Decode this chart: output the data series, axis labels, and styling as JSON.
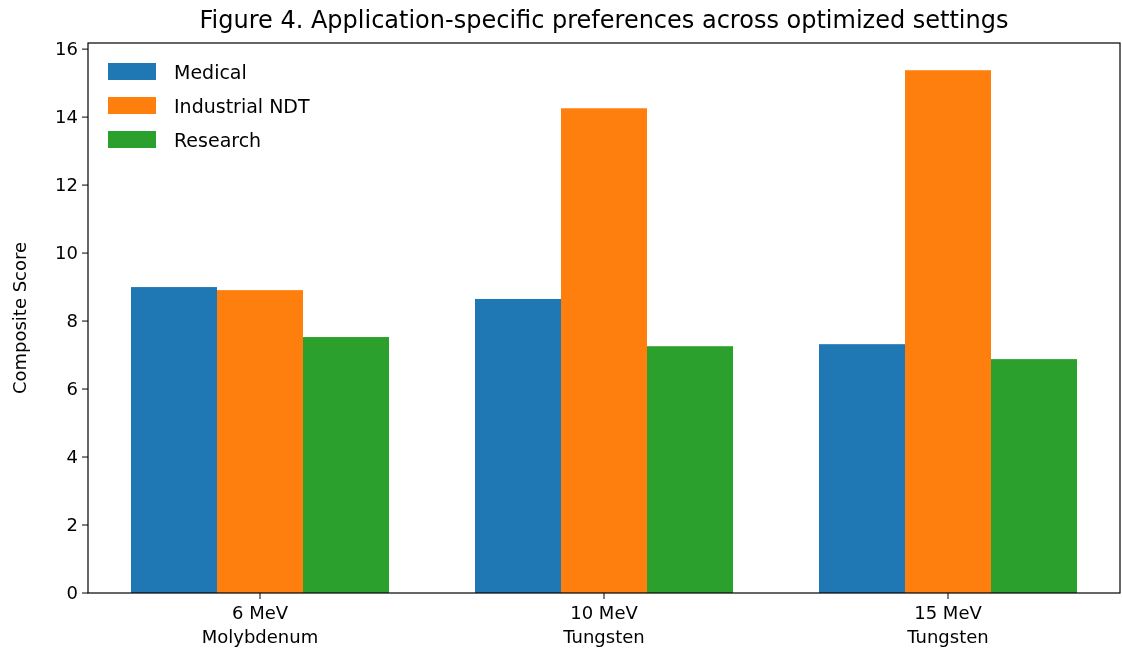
{
  "chart_data": {
    "type": "bar",
    "title": "Figure 4. Application-specific preferences across optimized settings",
    "ylabel": "Composite Score",
    "categories": [
      "6 MeV\nMolybdenum",
      "10 MeV\nTungsten",
      "15 MeV\nTungsten"
    ],
    "series": [
      {
        "name": "Medical",
        "color": "#1f77b4",
        "values": [
          9.0,
          8.65,
          7.32
        ]
      },
      {
        "name": "Industrial NDT",
        "color": "#ff7f0e",
        "values": [
          8.91,
          14.26,
          15.38
        ]
      },
      {
        "name": "Research",
        "color": "#2ca02c",
        "values": [
          7.53,
          7.26,
          6.88
        ]
      }
    ],
    "ylim": [
      0,
      16.18
    ],
    "yticks": [
      0,
      2,
      4,
      6,
      8,
      10,
      12,
      14,
      16
    ],
    "grid": false,
    "legend": "top left"
  }
}
